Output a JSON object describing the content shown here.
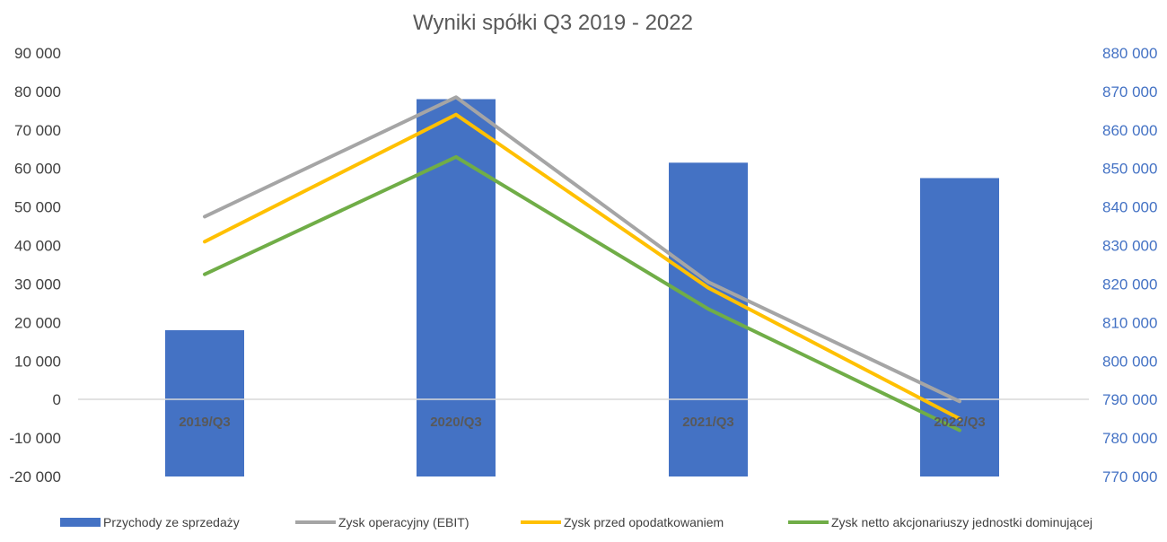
{
  "chart_data": {
    "type": "bar",
    "title": "Wyniki spółki Q3 2019 - 2022",
    "categories": [
      "2019/Q3",
      "2020/Q3",
      "2021/Q3",
      "2022/Q3"
    ],
    "y_left": {
      "range": [
        -20000,
        90000
      ],
      "ticks": [
        90000,
        80000,
        70000,
        60000,
        50000,
        40000,
        30000,
        20000,
        10000,
        0,
        -10000,
        -20000
      ],
      "tick_labels": [
        "90 000",
        "80 000",
        "70 000",
        "60 000",
        "50 000",
        "40 000",
        "30 000",
        "20 000",
        "10 000",
        "0",
        "-10 000",
        "-20 000"
      ]
    },
    "y_right": {
      "range": [
        770000,
        880000
      ],
      "ticks": [
        880000,
        870000,
        860000,
        850000,
        840000,
        830000,
        820000,
        810000,
        800000,
        790000,
        780000,
        770000
      ],
      "tick_labels": [
        "880 000",
        "870 000",
        "860 000",
        "850 000",
        "840 000",
        "830 000",
        "820 000",
        "810 000",
        "800 000",
        "790 000",
        "780 000",
        "770 000"
      ]
    },
    "series": [
      {
        "name": "Przychody ze sprzedaży",
        "type": "bar",
        "axis": "right",
        "color": "#4472C4",
        "values": [
          808000,
          868000,
          851500,
          847500
        ]
      },
      {
        "name": "Zysk operacyjny (EBIT)",
        "type": "line",
        "axis": "left",
        "color": "#A5A5A5",
        "values": [
          47500,
          78500,
          30500,
          -500
        ]
      },
      {
        "name": "Zysk przed opodatkowaniem",
        "type": "line",
        "axis": "left",
        "color": "#FFC000",
        "values": [
          41000,
          74000,
          29000,
          -5000
        ]
      },
      {
        "name": "Zysk netto akcjonariuszy jednostki dominującej",
        "type": "line",
        "axis": "left",
        "color": "#70AD47",
        "values": [
          32500,
          63000,
          23500,
          -8000
        ]
      }
    ],
    "legend_position": "bottom",
    "grid": false
  }
}
